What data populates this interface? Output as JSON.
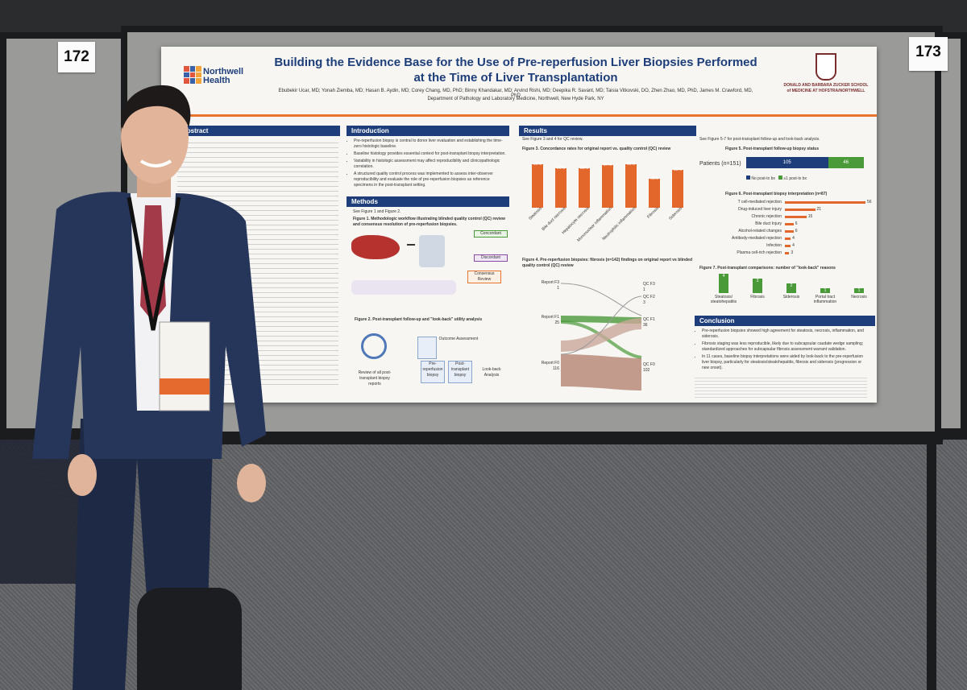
{
  "booths": {
    "left_number": "172",
    "right_number": "173"
  },
  "poster": {
    "left_logo": "Northwell Health",
    "title": "Building the Evidence Base for the Use of Pre-reperfusion Liver Biopsies Performed at the Time of Liver Transplantation",
    "authors": "Ebubekir Ucar, MD; Yonah Ziemba, MD; Hasan B. Aydin, MD; Corey Chang, MD, PhD; Binny Khandakar, MD; Arvind Rishi, MD; Deepika R. Savant, MD; Taisia Vitkovski, DO, Zhen Zhao, MD, PhD, James M. Crawford, MD, PhD",
    "department": "Department of Pathology and Laboratory Medicine, Northwell, New Hyde Park, NY",
    "right_logo": "DONALD AND BARBARA ZUCKER SCHOOL of MEDICINE AT HOFSTRA/NORTHWELL",
    "abstract_heading": "Abstract",
    "introduction_heading": "Introduction",
    "introduction_bullets": [
      "Pre-reperfusion biopsy is central to donor liver evaluation and establishing the time-zero histologic baseline.",
      "Baseline histology provides essential context for post-transplant biopsy interpretation.",
      "Variability in histologic assessment may affect reproducibility and clinicopathologic correlation.",
      "A structured quality control process was implemented to assess inter-observer reproducibility and evaluate the role of pre-reperfusion biopsies as reference specimens in the post-transplant setting."
    ],
    "methods_heading": "Methods",
    "methods_note": "See Figure 1 and Figure 2.",
    "figure1_caption": "Figure 1. Methodologic workflow illustrating blinded quality control (QC) review and consensus resolution of pre-reperfusion biopsies.",
    "figure1_labels": {
      "concordant": "Concordant",
      "discordant": "Discordant",
      "consensus": "Consensus Review"
    },
    "figure2_caption": "Figure 2. Post-transplant follow-up and \"look-back\" utility analysis",
    "figure2_labels": {
      "outcome": "Outcome Assessment",
      "review": "Review of all post-transplant biopsy reports",
      "pre": "Pre-reperfusion biopsy",
      "post": "Post-transplant biopsy",
      "lookback": "Look-back Analysis"
    },
    "results_heading": "Results",
    "results_note": "See Figure 3 and 4 for QC review.",
    "results_note2": "See Figure 5-7 for post-transplant follow-up and look-back analysis.",
    "figure3_caption": "Figure 3. Concordance rates for original report vs. quality control (QC) review",
    "figure4_caption": "Figure 4. Pre-reperfusion biopsies: fibrosis (n=142) findings on original report vs blinded quality control (QC) review",
    "figure4_nodes": {
      "left": [
        {
          "label": "Report F3",
          "value": "1"
        },
        {
          "label": "Report F1",
          "value": "25"
        },
        {
          "label": "Report F0",
          "value": "116"
        }
      ],
      "right": [
        {
          "label": "QC F3",
          "value": "1"
        },
        {
          "label": "QC F2",
          "value": "3"
        },
        {
          "label": "QC F1",
          "value": "36"
        },
        {
          "label": "QC F0",
          "value": "102"
        }
      ]
    },
    "figure5_caption": "Figure 5. Post-transplant follow-up biopsy status",
    "figure5_label": "Patients (n=151)",
    "figure5_legend": [
      "No post-tx bx",
      "≥1 post-tx bx"
    ],
    "figure6_caption": "Figure 6. Post-transplant biopsy interpretation (n=87)",
    "figure7_caption": "Figure 7. Post-transplant comparisons: number of \"look-back\" reasons",
    "conclusion_heading": "Conclusion",
    "conclusion_bullets": [
      "Pre-reperfusion biopsies showed high agreement for steatosis, necrosis, inflammation, and siderosis.",
      "Fibrosis staging was less reproducible, likely due to subcapsular caudate wedge sampling; standardized approaches for subcapsular fibrosis assessment warrant validation.",
      "In 11 cases, baseline biopsy interpretations were aided by look-back to the pre-reperfusion liver biopsy, particularly for steatosis/steatohepatitis, fibrosis and siderosis (progression or new onset)."
    ]
  },
  "chart_data": [
    {
      "type": "bar",
      "title": "Figure 3. Concordance rates for original report vs. quality control (QC) review",
      "categories": [
        "Steatosis",
        "Bile duct necrosis",
        "Hepatocyte necrosis",
        "Mononuclear inflammation",
        "Neutrophilic inflammation",
        "Fibrosis",
        "Siderosis"
      ],
      "values": [
        99,
        90,
        89,
        97,
        99,
        66,
        85
      ],
      "value_labels": [
        "99%",
        "90%",
        "89%",
        "97%",
        "99%",
        "66%",
        "85%"
      ],
      "ylim": [
        0,
        100
      ]
    },
    {
      "type": "bar",
      "title": "Figure 5. Post-transplant follow-up biopsy status",
      "categories": [
        "Patients (n=151)"
      ],
      "series": [
        {
          "name": "No post-tx bx",
          "values": [
            105
          ]
        },
        {
          "name": "≥1 post-tx bx",
          "values": [
            46
          ]
        }
      ]
    },
    {
      "type": "bar",
      "title": "Figure 6. Post-transplant biopsy interpretation (n=87)",
      "categories": [
        "T cell-mediated rejection",
        "Drug-induced liver injury",
        "Chronic rejection",
        "Bile duct Injury",
        "Alcohol-related changes",
        "Antibody-mediated rejection",
        "Infection",
        "Plasma cell-rich rejection"
      ],
      "values": [
        56,
        21,
        15,
        6,
        6,
        4,
        4,
        3
      ]
    },
    {
      "type": "bar",
      "title": "Figure 7. Post-transplant comparisons: number of \"look-back\" reasons",
      "categories": [
        "Steatosis/ steatohepatitis",
        "Fibrosis",
        "Siderosis",
        "Portal tract inflammation",
        "Necrosis"
      ],
      "values": [
        4,
        3,
        2,
        1,
        1
      ]
    }
  ],
  "colors": {
    "navy": "#1d3e7a",
    "orange": "#e3662a",
    "green": "#4a9a3a",
    "poster_bg": "#f7f6f2"
  }
}
